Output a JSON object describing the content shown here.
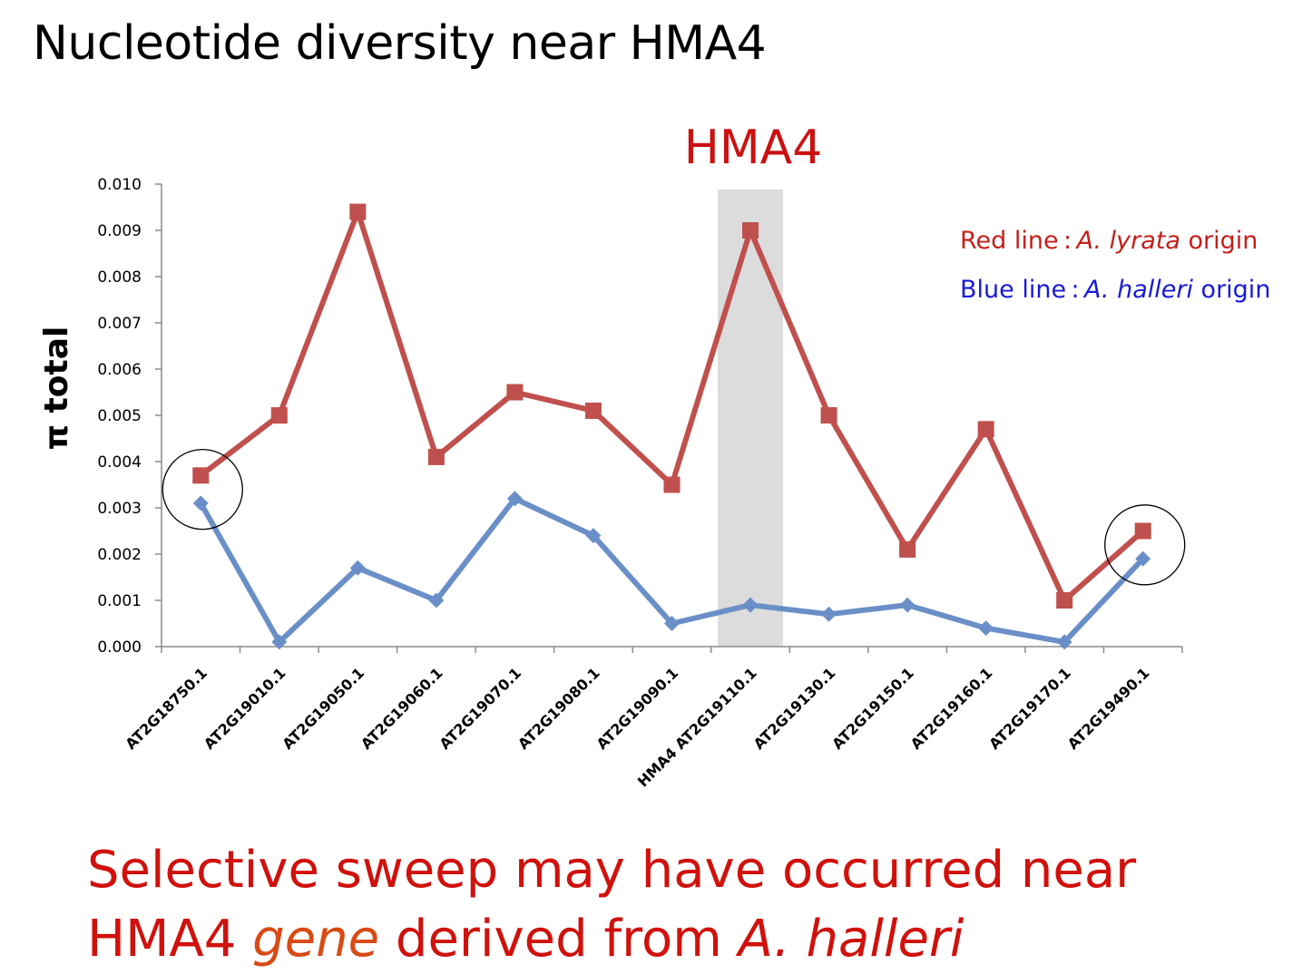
{
  "slide": {
    "title": "Nucleotide diversity near HMA4"
  },
  "highlight": {
    "label": "HMA4",
    "category_index": 7,
    "color": "#cc1111"
  },
  "legend": {
    "red": {
      "prefix": "Red line : ",
      "species": "A. lyrata",
      "suffix": " origin",
      "color": "#c4201a"
    },
    "blue": {
      "prefix": "Blue line : ",
      "species": "A. halleri",
      "suffix": " origin",
      "color": "#1a1ad6"
    }
  },
  "conclusion": {
    "line1": "Selective sweep may have occurred near",
    "line2_a": "HMA4 ",
    "line2_gene": "gene",
    "line2_b": " derived from ",
    "line2_species": "A. halleri"
  },
  "chart_data": {
    "type": "line",
    "ylabel": "π total",
    "xlabel": "",
    "ylim": [
      0,
      0.01
    ],
    "yticks": [
      "0.000",
      "0.001",
      "0.002",
      "0.003",
      "0.004",
      "0.005",
      "0.006",
      "0.007",
      "0.008",
      "0.009",
      "0.010"
    ],
    "categories": [
      "AT2G18750.1",
      "AT2G19010.1",
      "AT2G19050.1",
      "AT2G19060.1",
      "AT2G19070.1",
      "AT2G19080.1",
      "AT2G19090.1",
      "HMA4 AT2G19110.1",
      "AT2G19130.1",
      "AT2G19150.1",
      "AT2G19160.1",
      "AT2G19170.1",
      "AT2G19490.1"
    ],
    "grid": false,
    "series": [
      {
        "color": "#c0504d",
        "marker": "square",
        "values": [
          0.0037,
          0.005,
          0.0094,
          0.0041,
          0.0055,
          0.0051,
          0.0035,
          0.009,
          0.005,
          0.0021,
          0.0047,
          0.001,
          0.0025
        ]
      },
      {
        "color": "#6a8fc8",
        "marker": "diamond",
        "values": [
          0.0031,
          0.0001,
          0.0017,
          0.001,
          0.0032,
          0.0024,
          0.0005,
          0.0009,
          0.0007,
          0.0009,
          0.0004,
          0.0001,
          0.0019
        ]
      }
    ],
    "circled_indices": [
      0,
      12
    ]
  }
}
